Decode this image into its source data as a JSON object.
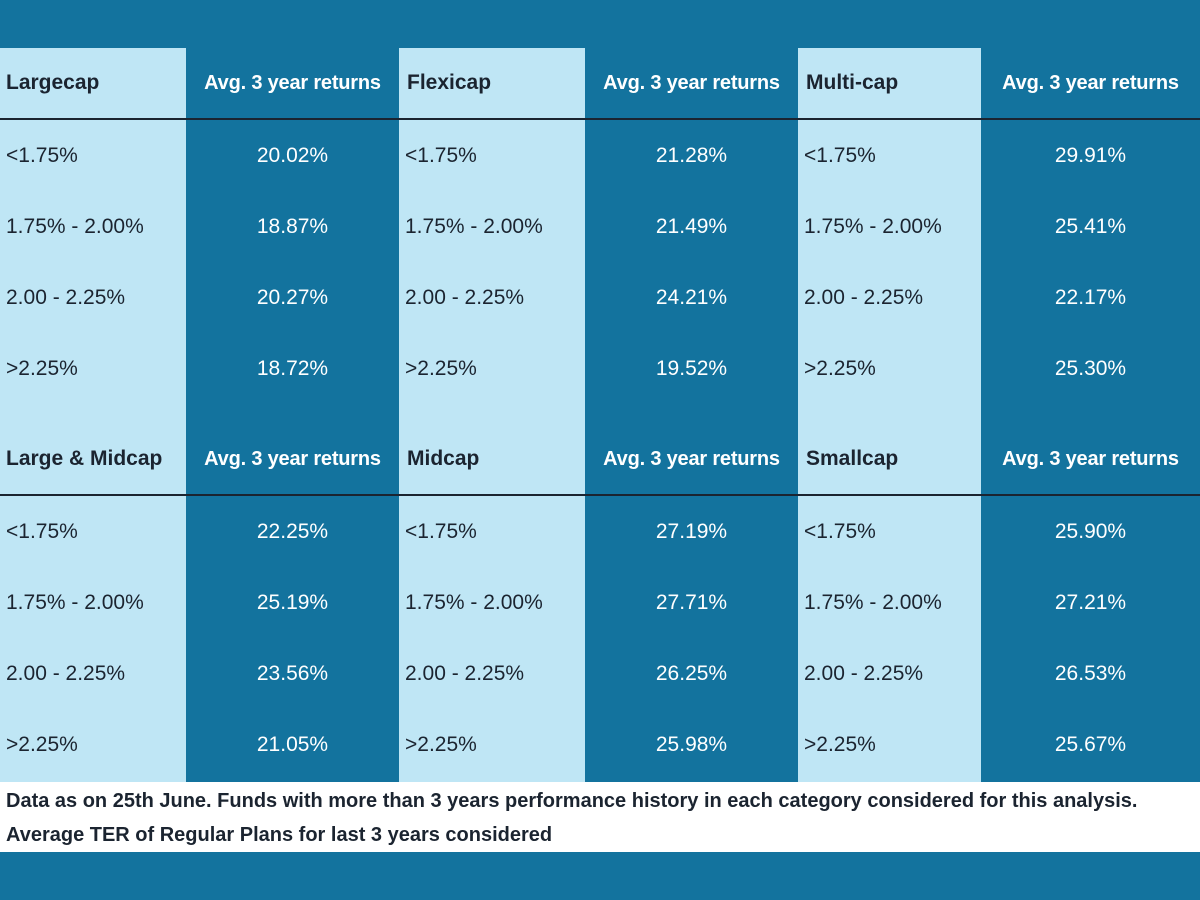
{
  "colors": {
    "frame": "#13739e",
    "light_column": "#bfe6f5",
    "dark_column": "#13739e",
    "text_dark": "#1b2430",
    "text_light": "#ffffff"
  },
  "ranges": [
    "<1.75%",
    "1.75% - 2.00%",
    "2.00 - 2.25%",
    ">2.25%"
  ],
  "returns_header": "Avg. 3 year returns",
  "blocks": [
    {
      "categories": [
        {
          "name": "Largecap",
          "returns": [
            "20.02%",
            "18.87%",
            "20.27%",
            "18.72%"
          ]
        },
        {
          "name": "Flexicap",
          "returns": [
            "21.28%",
            "21.49%",
            "24.21%",
            "19.52%"
          ]
        },
        {
          "name": "Multi-cap",
          "returns": [
            "29.91%",
            "25.41%",
            "22.17%",
            "25.30%"
          ]
        }
      ]
    },
    {
      "categories": [
        {
          "name": "Large & Midcap",
          "returns": [
            "22.25%",
            "25.19%",
            "23.56%",
            "21.05%"
          ]
        },
        {
          "name": "Midcap",
          "returns": [
            "27.19%",
            "27.71%",
            "26.25%",
            "25.98%"
          ]
        },
        {
          "name": "Smallcap",
          "returns": [
            "25.90%",
            "27.21%",
            "26.53%",
            "25.67%"
          ]
        }
      ]
    }
  ],
  "footnote": "Data as on 25th June. Funds with more than 3 years performance history in each category considered for this analysis. Average TER of Regular Plans for last 3 years considered"
}
